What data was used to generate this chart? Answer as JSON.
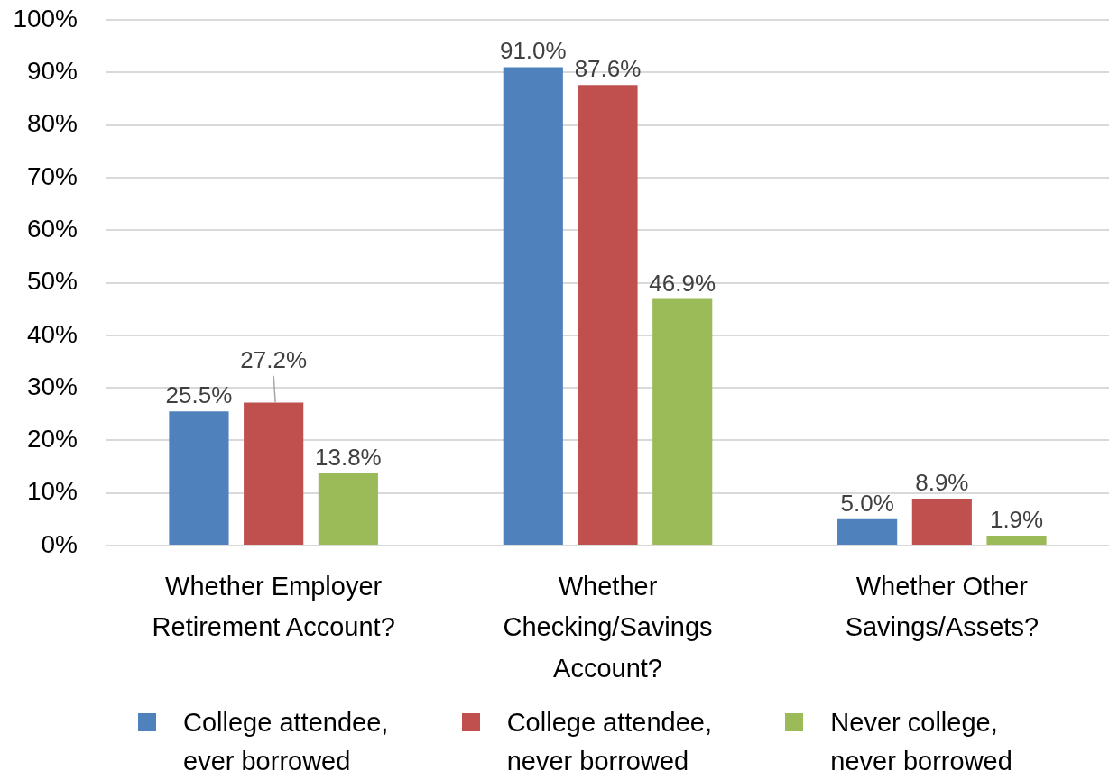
{
  "chart_data": {
    "type": "bar",
    "categories": [
      "Whether Employer Retirement Account?",
      "Whether Checking/Savings Account?",
      "Whether Other Savings/Assets?"
    ],
    "series": [
      {
        "name": "College attendee, ever borrowed",
        "color": "#4f81bd",
        "values": [
          25.5,
          91.0,
          5.0
        ],
        "value_labels": [
          "25.5%",
          "91.0%",
          "5.0%"
        ]
      },
      {
        "name": "College attendee, never borrowed",
        "color": "#c0504d",
        "values": [
          27.2,
          87.6,
          8.9
        ],
        "value_labels": [
          "27.2%",
          "87.6%",
          "8.9%"
        ]
      },
      {
        "name": "Never college, never borrowed",
        "color": "#9bbb59",
        "values": [
          13.8,
          46.9,
          1.9
        ],
        "value_labels": [
          "13.8%",
          "46.9%",
          "1.9%"
        ]
      }
    ],
    "ylim": [
      0,
      100
    ],
    "yticks": [
      {
        "value": 0,
        "label": "0%"
      },
      {
        "value": 10,
        "label": "10%"
      },
      {
        "value": 20,
        "label": "20%"
      },
      {
        "value": 30,
        "label": "30%"
      },
      {
        "value": 40,
        "label": "40%"
      },
      {
        "value": 50,
        "label": "50%"
      },
      {
        "value": 60,
        "label": "60%"
      },
      {
        "value": 70,
        "label": "70%"
      },
      {
        "value": 80,
        "label": "80%"
      },
      {
        "value": 90,
        "label": "90%"
      },
      {
        "value": 100,
        "label": "100%"
      }
    ],
    "grid": "y",
    "legend": "bottom"
  }
}
